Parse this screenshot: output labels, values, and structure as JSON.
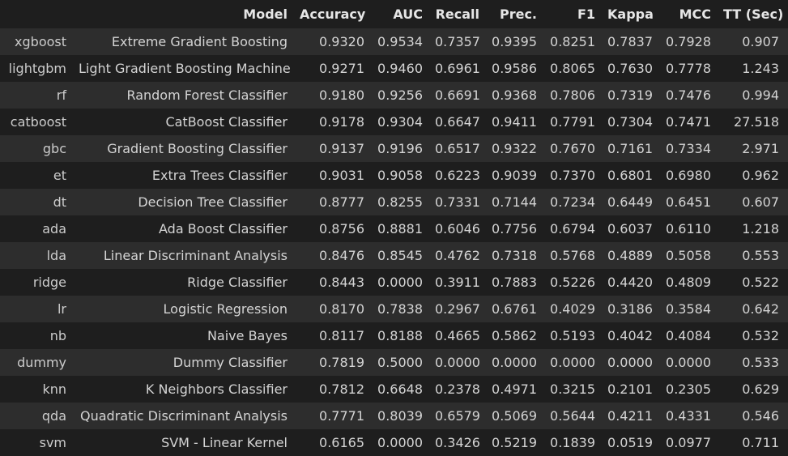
{
  "table": {
    "columns": [
      "",
      "Model",
      "Accuracy",
      "AUC",
      "Recall",
      "Prec.",
      "F1",
      "Kappa",
      "MCC",
      "TT (Sec)"
    ],
    "rows": [
      {
        "id": "xgboost",
        "model": "Extreme Gradient Boosting",
        "acc": "0.9320",
        "auc": "0.9534",
        "recall": "0.7357",
        "prec": "0.9395",
        "f1": "0.8251",
        "kappa": "0.7837",
        "mcc": "0.7928",
        "tt": "0.907"
      },
      {
        "id": "lightgbm",
        "model": "Light Gradient Boosting Machine",
        "acc": "0.9271",
        "auc": "0.9460",
        "recall": "0.6961",
        "prec": "0.9586",
        "f1": "0.8065",
        "kappa": "0.7630",
        "mcc": "0.7778",
        "tt": "1.243"
      },
      {
        "id": "rf",
        "model": "Random Forest Classifier",
        "acc": "0.9180",
        "auc": "0.9256",
        "recall": "0.6691",
        "prec": "0.9368",
        "f1": "0.7806",
        "kappa": "0.7319",
        "mcc": "0.7476",
        "tt": "0.994"
      },
      {
        "id": "catboost",
        "model": "CatBoost Classifier",
        "acc": "0.9178",
        "auc": "0.9304",
        "recall": "0.6647",
        "prec": "0.9411",
        "f1": "0.7791",
        "kappa": "0.7304",
        "mcc": "0.7471",
        "tt": "27.518"
      },
      {
        "id": "gbc",
        "model": "Gradient Boosting Classifier",
        "acc": "0.9137",
        "auc": "0.9196",
        "recall": "0.6517",
        "prec": "0.9322",
        "f1": "0.7670",
        "kappa": "0.7161",
        "mcc": "0.7334",
        "tt": "2.971"
      },
      {
        "id": "et",
        "model": "Extra Trees Classifier",
        "acc": "0.9031",
        "auc": "0.9058",
        "recall": "0.6223",
        "prec": "0.9039",
        "f1": "0.7370",
        "kappa": "0.6801",
        "mcc": "0.6980",
        "tt": "0.962"
      },
      {
        "id": "dt",
        "model": "Decision Tree Classifier",
        "acc": "0.8777",
        "auc": "0.8255",
        "recall": "0.7331",
        "prec": "0.7144",
        "f1": "0.7234",
        "kappa": "0.6449",
        "mcc": "0.6451",
        "tt": "0.607"
      },
      {
        "id": "ada",
        "model": "Ada Boost Classifier",
        "acc": "0.8756",
        "auc": "0.8881",
        "recall": "0.6046",
        "prec": "0.7756",
        "f1": "0.6794",
        "kappa": "0.6037",
        "mcc": "0.6110",
        "tt": "1.218"
      },
      {
        "id": "lda",
        "model": "Linear Discriminant Analysis",
        "acc": "0.8476",
        "auc": "0.8545",
        "recall": "0.4762",
        "prec": "0.7318",
        "f1": "0.5768",
        "kappa": "0.4889",
        "mcc": "0.5058",
        "tt": "0.553"
      },
      {
        "id": "ridge",
        "model": "Ridge Classifier",
        "acc": "0.8443",
        "auc": "0.0000",
        "recall": "0.3911",
        "prec": "0.7883",
        "f1": "0.5226",
        "kappa": "0.4420",
        "mcc": "0.4809",
        "tt": "0.522"
      },
      {
        "id": "lr",
        "model": "Logistic Regression",
        "acc": "0.8170",
        "auc": "0.7838",
        "recall": "0.2967",
        "prec": "0.6761",
        "f1": "0.4029",
        "kappa": "0.3186",
        "mcc": "0.3584",
        "tt": "0.642"
      },
      {
        "id": "nb",
        "model": "Naive Bayes",
        "acc": "0.8117",
        "auc": "0.8188",
        "recall": "0.4665",
        "prec": "0.5862",
        "f1": "0.5193",
        "kappa": "0.4042",
        "mcc": "0.4084",
        "tt": "0.532"
      },
      {
        "id": "dummy",
        "model": "Dummy Classifier",
        "acc": "0.7819",
        "auc": "0.5000",
        "recall": "0.0000",
        "prec": "0.0000",
        "f1": "0.0000",
        "kappa": "0.0000",
        "mcc": "0.0000",
        "tt": "0.533"
      },
      {
        "id": "knn",
        "model": "K Neighbors Classifier",
        "acc": "0.7812",
        "auc": "0.6648",
        "recall": "0.2378",
        "prec": "0.4971",
        "f1": "0.3215",
        "kappa": "0.2101",
        "mcc": "0.2305",
        "tt": "0.629"
      },
      {
        "id": "qda",
        "model": "Quadratic Discriminant Analysis",
        "acc": "0.7771",
        "auc": "0.8039",
        "recall": "0.6579",
        "prec": "0.5069",
        "f1": "0.5644",
        "kappa": "0.4211",
        "mcc": "0.4331",
        "tt": "0.546"
      },
      {
        "id": "svm",
        "model": "SVM - Linear Kernel",
        "acc": "0.6165",
        "auc": "0.0000",
        "recall": "0.3426",
        "prec": "0.5219",
        "f1": "0.1839",
        "kappa": "0.0519",
        "mcc": "0.0977",
        "tt": "0.711"
      }
    ]
  },
  "colors": {
    "background": "#1e1e1e",
    "row_stripe": "#2d2d2d",
    "text": "#d4d4d4"
  }
}
